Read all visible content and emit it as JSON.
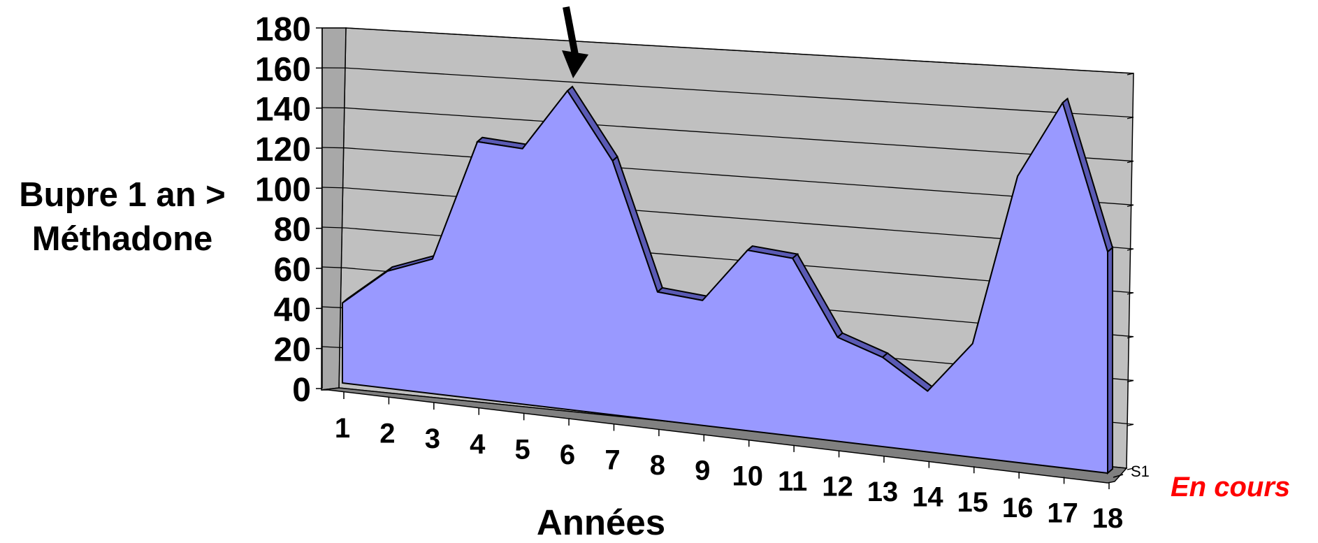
{
  "chart_data": {
    "type": "area",
    "ylabel_lines": [
      "Bupre 1 an >",
      "Méthadone"
    ],
    "xlabel": "Années",
    "categories": [
      "1",
      "2",
      "3",
      "4",
      "5",
      "6",
      "7",
      "8",
      "9",
      "10",
      "11",
      "12",
      "13",
      "14",
      "15",
      "16",
      "17",
      "18"
    ],
    "series": [
      {
        "name": "S1",
        "values": [
          40,
          58,
          66,
          125,
          123,
          152,
          120,
          60,
          58,
          83,
          81,
          47,
          40,
          27,
          50,
          125,
          158,
          95
        ]
      }
    ],
    "ylim": [
      0,
      180
    ],
    "yticks": [
      "0",
      "20",
      "40",
      "60",
      "80",
      "100",
      "120",
      "140",
      "160",
      "180"
    ],
    "grid": true,
    "colors": {
      "area": "#9999ff",
      "area_edge": "#5a5ab4",
      "wall": "#c0c0c0",
      "floor": "#808080"
    },
    "annotation": {
      "type": "arrow",
      "target_category": "6"
    }
  },
  "status_label": {
    "text": "En cours",
    "color": "#ff0000"
  }
}
